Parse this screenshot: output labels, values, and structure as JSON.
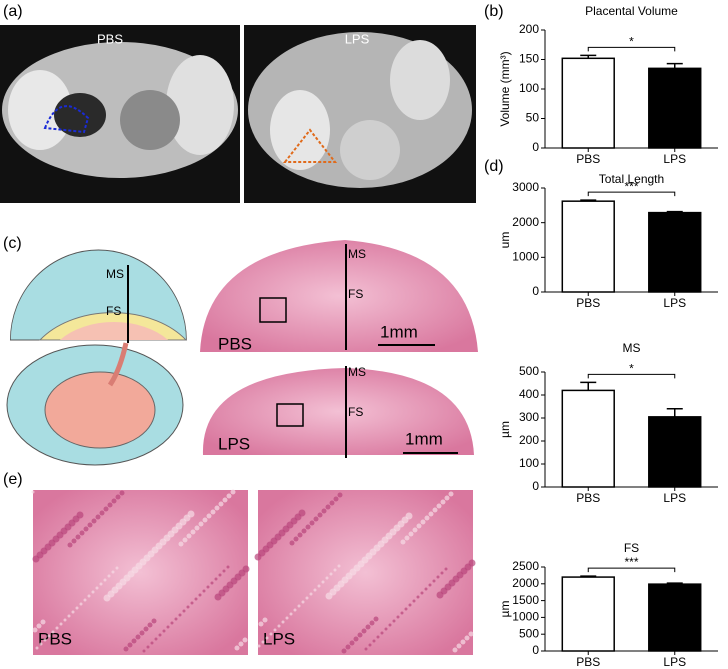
{
  "figure": {
    "a": {
      "label": "(a)",
      "left": "PBS",
      "right": "LPS"
    },
    "b_label": "(b)",
    "c": {
      "label": "(c)",
      "diagram_ms": "MS",
      "diagram_fs": "FS",
      "top": {
        "name": "PBS",
        "ms": "MS",
        "fs": "FS",
        "scale": "1mm"
      },
      "bottom": {
        "name": "LPS",
        "ms": "MS",
        "fs": "FS",
        "scale": "1mm"
      }
    },
    "d_label": "(d)",
    "e": {
      "label": "(e)",
      "left": "PBS",
      "right": "LPS"
    }
  },
  "chart_data": [
    {
      "type": "bar",
      "title": "Placental Volume",
      "y_label": "Volume (mm³)",
      "categories": [
        "PBS",
        "LPS"
      ],
      "values": [
        152,
        135
      ],
      "errors": [
        5,
        8
      ],
      "colors": [
        "#ffffff",
        "#000000"
      ],
      "annotation": "*",
      "ylim": [
        0,
        200
      ],
      "yticks": [
        0,
        50,
        100,
        150,
        200
      ]
    },
    {
      "type": "bar",
      "title": "Total Length",
      "y_label": "um",
      "categories": [
        "PBS",
        "LPS"
      ],
      "values": [
        2620,
        2290
      ],
      "errors": [
        30,
        30
      ],
      "colors": [
        "#ffffff",
        "#000000"
      ],
      "annotation": "***",
      "ylim": [
        0,
        3000
      ],
      "yticks": [
        0,
        1000,
        2000,
        3000
      ]
    },
    {
      "type": "bar",
      "title": "MS",
      "y_label": "µm",
      "categories": [
        "PBS",
        "LPS"
      ],
      "values": [
        420,
        305
      ],
      "errors": [
        35,
        35
      ],
      "colors": [
        "#ffffff",
        "#000000"
      ],
      "annotation": "*",
      "ylim": [
        0,
        500
      ],
      "yticks": [
        0,
        100,
        200,
        300,
        400,
        500
      ]
    },
    {
      "type": "bar",
      "title": "FS",
      "y_label": "µm",
      "categories": [
        "PBS",
        "LPS"
      ],
      "values": [
        2200,
        1990
      ],
      "errors": [
        30,
        30
      ],
      "colors": [
        "#ffffff",
        "#000000"
      ],
      "annotation": "***",
      "ylim": [
        0,
        2500
      ],
      "yticks": [
        0,
        500,
        1000,
        1500,
        2000,
        2500
      ]
    }
  ]
}
